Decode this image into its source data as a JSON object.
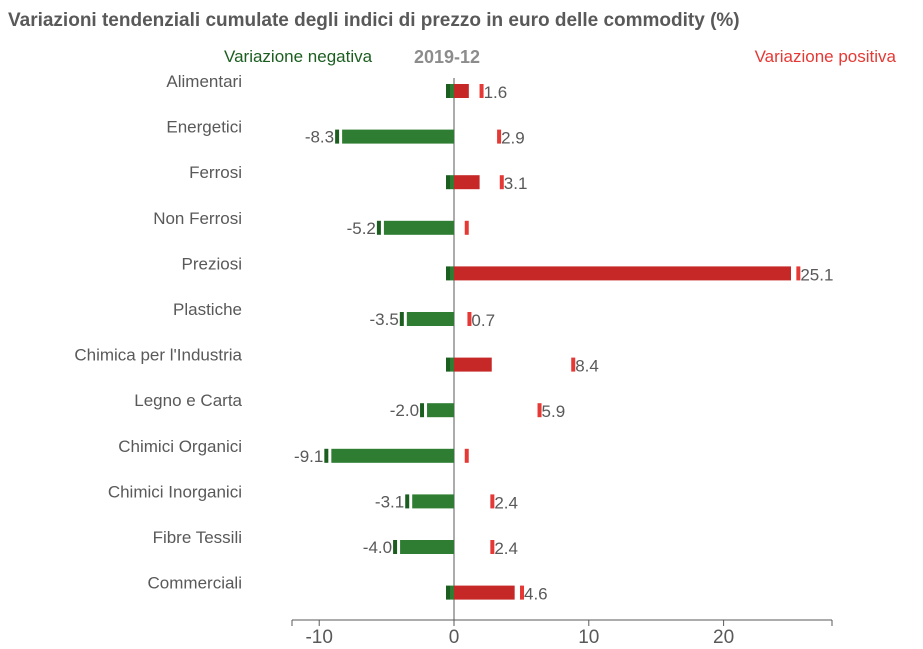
{
  "chart_data": {
    "type": "bar",
    "title": "Variazioni tendenziali cumulate degli indici di prezzo in euro delle commodity (%)",
    "period": "2019-12",
    "legend": {
      "negative_label": "Variazione negativa",
      "positive_label": "Variazione positiva",
      "placement": "top"
    },
    "colors": {
      "negative_bar": "#2e7d32",
      "negative_marker": "#1b5e20",
      "positive_bar": "#c62828",
      "positive_marker": "#e53935",
      "text": "#595959",
      "legend_negative": "#1b5e20",
      "legend_positive": "#e53935"
    },
    "xlim": [
      -12,
      28
    ],
    "x_ticks": [
      {
        "value": -10,
        "label": "-10"
      },
      {
        "value": 0,
        "label": "0"
      },
      {
        "value": 10,
        "label": "10"
      },
      {
        "value": 20,
        "label": "20"
      }
    ],
    "grid": false,
    "categories": [
      "Alimentari",
      "Energetici",
      "Ferrosi",
      "Non Ferrosi",
      "Preziosi",
      "Plastiche",
      "Chimica per l'Industria",
      "Legno e Carta",
      "Chimici Organici",
      "Chimici Inorganici",
      "Fibre Tessili",
      "Commerciali"
    ],
    "series": [
      {
        "name": "Variazione negativa",
        "values": [
          -0.3,
          -8.3,
          -0.3,
          -5.2,
          -0.3,
          -3.5,
          -0.3,
          -2.0,
          -9.1,
          -3.1,
          -4.0,
          -0.3
        ]
      },
      {
        "name": "Variazione positiva",
        "values": [
          1.1,
          0,
          1.9,
          0,
          25.0,
          0,
          2.8,
          0,
          0,
          0,
          0,
          4.5
        ]
      }
    ],
    "marker_values": {
      "negative": [
        0,
        -8.3,
        0,
        -5.2,
        0,
        -3.5,
        0,
        -2.0,
        -9.1,
        -3.1,
        -4.0,
        0
      ],
      "positive": [
        1.6,
        2.9,
        3.1,
        0.5,
        25.1,
        0.7,
        8.4,
        5.9,
        0.5,
        2.4,
        2.4,
        4.6
      ]
    },
    "data_labels": {
      "negative": [
        "",
        "-8.3",
        "",
        "-5.2",
        "",
        "-3.5",
        "",
        "-2.0",
        "-9.1",
        "-3.1",
        "-4.0",
        ""
      ],
      "positive": [
        "1.6",
        "2.9",
        "3.1",
        "",
        "25.1",
        "0.7",
        "8.4",
        "5.9",
        "",
        "2.4",
        "2.4",
        "4.6"
      ]
    }
  }
}
